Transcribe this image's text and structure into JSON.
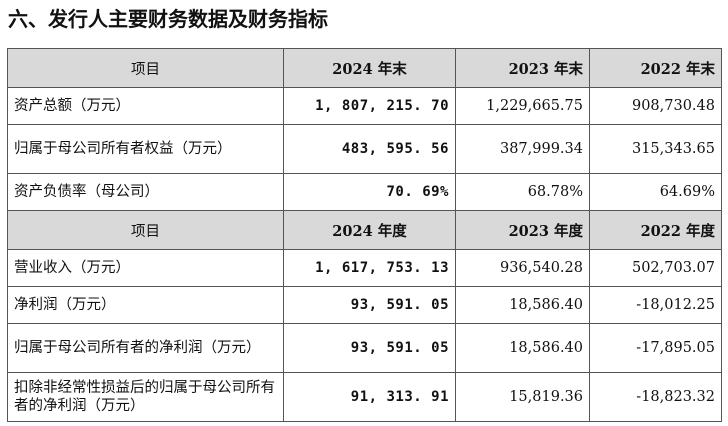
{
  "title": "六、发行人主要财务数据及财务指标",
  "section1": {
    "header": [
      "项目",
      "2024 年末",
      "2023 年末",
      "2022 年末"
    ],
    "rows": [
      {
        "label": "资产总额（万元）",
        "v2024": "1, 807, 215. 70",
        "v2023": "1,229,665.75",
        "v2022": "908,730.48"
      },
      {
        "label": "归属于母公司所有者权益（万元）",
        "v2024": "483, 595. 56",
        "v2023": "387,999.34",
        "v2022": "315,343.65"
      },
      {
        "label": "资产负债率（母公司）",
        "v2024": "70. 69%",
        "v2023": "68.78%",
        "v2022": "64.69%"
      }
    ]
  },
  "section2": {
    "header": [
      "项目",
      "2024 年度",
      "2023 年度",
      "2022 年度"
    ],
    "rows": [
      {
        "label": "营业收入（万元）",
        "v2024": "1, 617, 753. 13",
        "v2023": "936,540.28",
        "v2022": "502,703.07"
      },
      {
        "label": "净利润（万元）",
        "v2024": "93, 591. 05",
        "v2023": "18,586.40",
        "v2022": "-18,012.25"
      },
      {
        "label": "归属于母公司所有者的净利润（万元）",
        "v2024": "93, 591. 05",
        "v2023": "18,586.40",
        "v2022": "-17,895.05"
      },
      {
        "label": "扣除非经常性损益后的归属于母公司所有者的净利润（万元）",
        "v2024": "91, 313. 91",
        "v2023": "15,819.36",
        "v2022": "-18,823.32"
      }
    ]
  }
}
